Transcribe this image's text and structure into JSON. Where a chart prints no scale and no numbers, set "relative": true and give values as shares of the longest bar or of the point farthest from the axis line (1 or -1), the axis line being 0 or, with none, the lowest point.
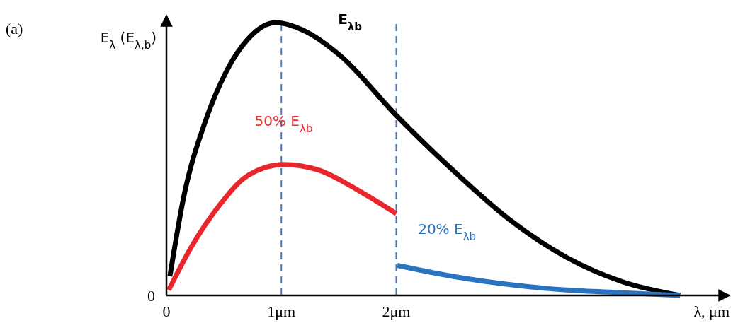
{
  "chart_data": {
    "type": "line",
    "relative": true,
    "xlabel": "λ, μm",
    "ylabel": "E$_{λ}$ (E$_{λ,b}$)",
    "xlim": [
      0,
      4.9
    ],
    "xticks": [
      0,
      {
        "value": 1,
        "label": "1μm"
      },
      {
        "value": 2,
        "label": "2μm"
      }
    ],
    "annotations": [
      "(a)",
      "0"
    ],
    "ref_lines": [
      {
        "axis": "x",
        "value": 1,
        "color": "#4a7ab5",
        "line_style": "dashed"
      },
      {
        "axis": "x",
        "value": 2,
        "color": "#4a7ab5",
        "line_style": "dashed"
      }
    ],
    "line_style": "solid",
    "marker": "none",
    "series": [
      {
        "name": "E$_{λb}$",
        "color": "#000000",
        "x": [
          0.03,
          0.15,
          0.34,
          0.52,
          0.71,
          0.95,
          1.2,
          1.51,
          2.0,
          2.49,
          2.98,
          3.48,
          3.97,
          4.47
        ],
        "values": [
          0.07,
          0.36,
          0.64,
          0.82,
          0.94,
          1.0,
          0.97,
          0.88,
          0.66,
          0.46,
          0.28,
          0.14,
          0.05,
          0
        ]
      },
      {
        "name": "50% E$_{λb}$",
        "color": "#e8262b",
        "x": [
          0.02,
          0.22,
          0.46,
          0.71,
          1.02,
          1.32,
          1.69,
          2.0
        ],
        "values": [
          0.02,
          0.18,
          0.33,
          0.44,
          0.48,
          0.46,
          0.38,
          0.3
        ]
      },
      {
        "name": "20% E$_{λb}$",
        "color": "#2a73c0",
        "x": [
          2.01,
          2.49,
          2.98,
          3.48,
          3.97,
          4.47
        ],
        "values": [
          0.11,
          0.07,
          0.04,
          0.02,
          0.01,
          0
        ]
      }
    ]
  }
}
